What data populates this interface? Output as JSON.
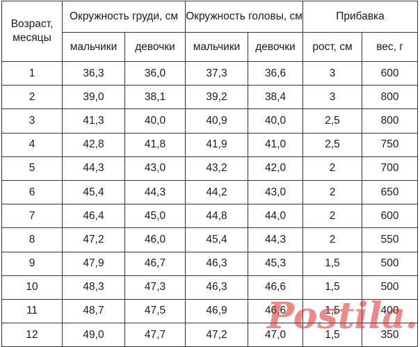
{
  "table": {
    "headers": {
      "age": "Возраст, месяцы",
      "chest": "Окружность груди, см",
      "head": "Окружность головы, см",
      "gain": "Прибавка",
      "boys": "мальчики",
      "girls": "девочки",
      "height_gain": "рост, см",
      "weight_gain": "вес, г"
    },
    "rows": [
      [
        "1",
        "36,3",
        "36,0",
        "37,3",
        "36,6",
        "3",
        "600"
      ],
      [
        "2",
        "39,0",
        "38,1",
        "39,2",
        "38,4",
        "3",
        "800"
      ],
      [
        "3",
        "41,3",
        "40,0",
        "40,9",
        "40,0",
        "2,5",
        "800"
      ],
      [
        "4",
        "42,8",
        "41,8",
        "41,9",
        "41,0",
        "2,5",
        "750"
      ],
      [
        "5",
        "44,3",
        "43,0",
        "43,2",
        "42,0",
        "2",
        "700"
      ],
      [
        "6",
        "45,4",
        "44,3",
        "44,2",
        "43,0",
        "2",
        "650"
      ],
      [
        "7",
        "46,4",
        "45,0",
        "44,8",
        "44,0",
        "2",
        "600"
      ],
      [
        "8",
        "47,2",
        "46,0",
        "45,4",
        "44,3",
        "2",
        "550"
      ],
      [
        "9",
        "47,9",
        "46,7",
        "46,3",
        "45,3",
        "1,5",
        "500"
      ],
      [
        "10",
        "48,3",
        "47,3",
        "46,3",
        "46,6",
        "1,5",
        "500"
      ],
      [
        "11",
        "48,7",
        "47,5",
        "46,9",
        "46,6",
        "1,5",
        "400"
      ],
      [
        "12",
        "49,0",
        "47,7",
        "47,2",
        "47,0",
        "1,5",
        "350"
      ]
    ]
  },
  "watermark": {
    "text": "Postila.ru",
    "color": "#dc2828"
  }
}
